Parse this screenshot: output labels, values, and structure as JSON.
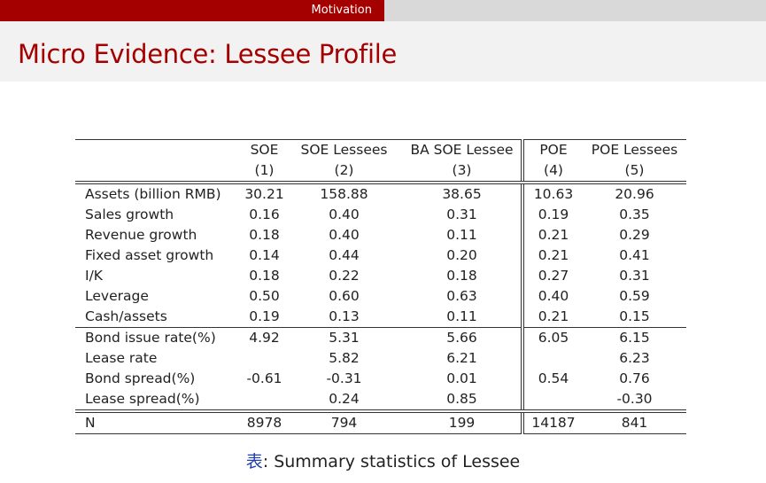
{
  "header": {
    "section": "Motivation"
  },
  "title": "Micro Evidence: Lessee Profile",
  "table": {
    "columns": [
      {
        "name": "SOE",
        "num": "(1)"
      },
      {
        "name": "SOE Lessees",
        "num": "(2)"
      },
      {
        "name": "BA SOE Lessee",
        "num": "(3)"
      },
      {
        "name": "POE",
        "num": "(4)"
      },
      {
        "name": "POE Lessees",
        "num": "(5)"
      }
    ],
    "rows": [
      {
        "label": "Assets (billion RMB)",
        "v": [
          "30.21",
          "158.88",
          "38.65",
          "10.63",
          "20.96"
        ]
      },
      {
        "label": "Sales growth",
        "v": [
          "0.16",
          "0.40",
          "0.31",
          "0.19",
          "0.35"
        ]
      },
      {
        "label": "Revenue growth",
        "v": [
          "0.18",
          "0.40",
          "0.11",
          "0.21",
          "0.29"
        ]
      },
      {
        "label": "Fixed asset growth",
        "v": [
          "0.14",
          "0.44",
          "0.20",
          "0.21",
          "0.41"
        ]
      },
      {
        "label": "I/K",
        "v": [
          "0.18",
          "0.22",
          "0.18",
          "0.27",
          "0.31"
        ]
      },
      {
        "label": "Leverage",
        "v": [
          "0.50",
          "0.60",
          "0.63",
          "0.40",
          "0.59"
        ]
      },
      {
        "label": "Cash/assets",
        "v": [
          "0.19",
          "0.13",
          "0.11",
          "0.21",
          "0.15"
        ]
      },
      {
        "label": "Bond issue rate(%)",
        "v": [
          "4.92",
          "5.31",
          "5.66",
          "6.05",
          "6.15"
        ]
      },
      {
        "label": "Lease rate",
        "v": [
          "",
          "5.82",
          "6.21",
          "",
          "6.23"
        ]
      },
      {
        "label": "Bond spread(%)",
        "v": [
          "-0.61",
          "-0.31",
          "0.01",
          "0.54",
          "0.76"
        ]
      },
      {
        "label": "Lease spread(%)",
        "v": [
          "",
          "0.24",
          "0.85",
          "",
          "-0.30"
        ]
      },
      {
        "label": "N",
        "v": [
          "8978",
          "794",
          "199",
          "14187",
          "841"
        ]
      }
    ]
  },
  "caption": {
    "tag": "表",
    "text": ": Summary statistics of Lessee"
  }
}
